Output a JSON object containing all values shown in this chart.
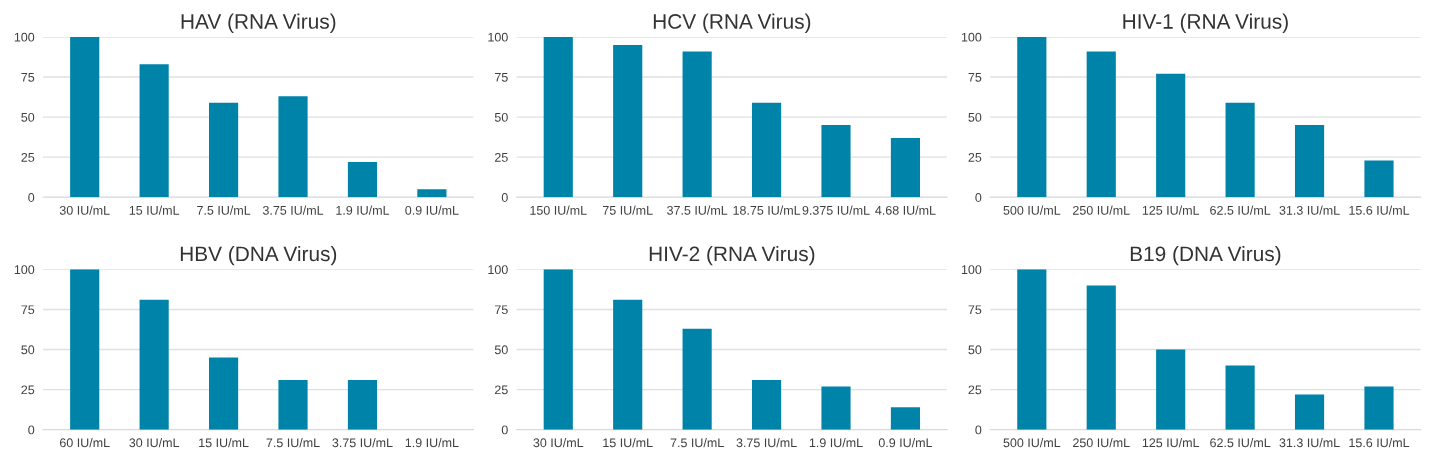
{
  "chart_data": [
    {
      "type": "bar",
      "title": "HAV (RNA Virus)",
      "categories": [
        "30 IU/mL",
        "15 IU/mL",
        "7.5 IU/mL",
        "3.75 IU/mL",
        "1.9 IU/mL",
        "0.9 IU/mL"
      ],
      "values": [
        100,
        83,
        59,
        63,
        22,
        5
      ],
      "color": "#0083a9",
      "ylim": [
        0,
        100
      ],
      "yticks": [
        0,
        25,
        50,
        75,
        100
      ],
      "grid": "y"
    },
    {
      "type": "bar",
      "title": "HCV (RNA Virus)",
      "categories": [
        "150 IU/mL",
        "75 IU/mL",
        "37.5 IU/mL",
        "18.75 IU/mL",
        "9.375 IU/mL",
        "4.68 IU/mL"
      ],
      "values": [
        100,
        95,
        91,
        59,
        45,
        37
      ],
      "color": "#0083a9",
      "ylim": [
        0,
        100
      ],
      "yticks": [
        0,
        25,
        50,
        75,
        100
      ],
      "grid": "y"
    },
    {
      "type": "bar",
      "title": "HIV-1 (RNA Virus)",
      "categories": [
        "500 IU/mL",
        "250 IU/mL",
        "125 IU/mL",
        "62.5 IU/mL",
        "31.3 IU/mL",
        "15.6 IU/mL"
      ],
      "values": [
        100,
        91,
        77,
        59,
        45,
        23
      ],
      "color": "#0083a9",
      "ylim": [
        0,
        100
      ],
      "yticks": [
        0,
        25,
        50,
        75,
        100
      ],
      "grid": "y"
    },
    {
      "type": "bar",
      "title": "HBV (DNA Virus)",
      "categories": [
        "60 IU/mL",
        "30 IU/mL",
        "15 IU/mL",
        "7.5 IU/mL",
        "3.75 IU/mL",
        "1.9 IU/mL"
      ],
      "values": [
        100,
        81,
        45,
        31,
        31,
        0
      ],
      "color": "#0083a9",
      "ylim": [
        0,
        100
      ],
      "yticks": [
        0,
        25,
        50,
        75,
        100
      ],
      "grid": "y"
    },
    {
      "type": "bar",
      "title": "HIV-2 (RNA Virus)",
      "categories": [
        "30 IU/mL",
        "15 IU/mL",
        "7.5 IU/mL",
        "3.75 IU/mL",
        "1.9 IU/mL",
        "0.9 IU/mL"
      ],
      "values": [
        100,
        81,
        63,
        31,
        27,
        14
      ],
      "color": "#0083a9",
      "ylim": [
        0,
        100
      ],
      "yticks": [
        0,
        25,
        50,
        75,
        100
      ],
      "grid": "y"
    },
    {
      "type": "bar",
      "title": "B19 (DNA Virus)",
      "categories": [
        "500 IU/mL",
        "250 IU/mL",
        "125 IU/mL",
        "62.5 IU/mL",
        "31.3 IU/mL",
        "15.6 IU/mL"
      ],
      "values": [
        100,
        90,
        50,
        40,
        22,
        27
      ],
      "color": "#0083a9",
      "ylim": [
        0,
        100
      ],
      "yticks": [
        0,
        25,
        50,
        75,
        100
      ],
      "grid": "y"
    }
  ]
}
